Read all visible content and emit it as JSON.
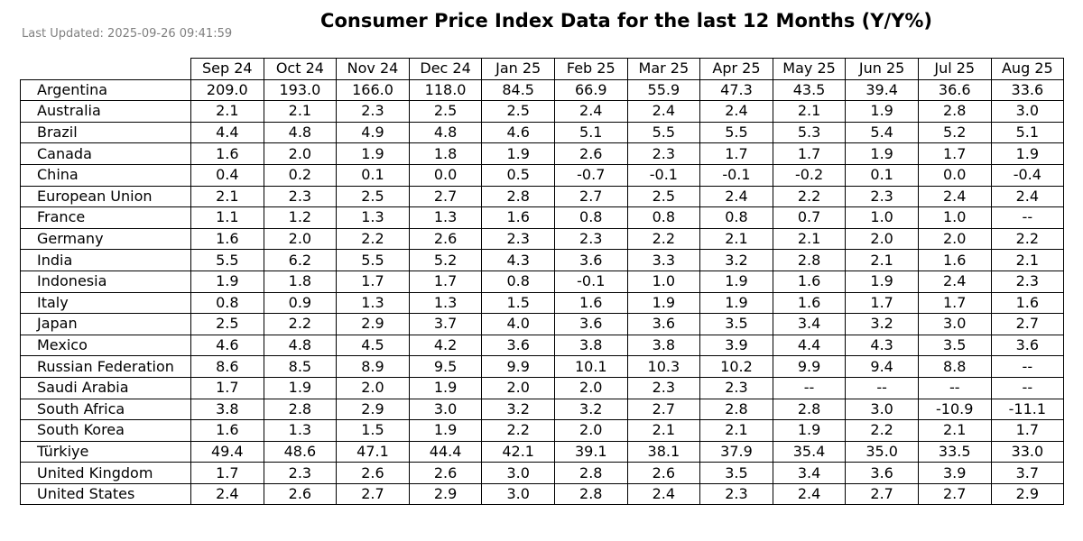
{
  "page": {
    "last_updated": "Last Updated: 2025-09-26 09:41:59"
  },
  "chart_data": {
    "type": "table",
    "title": "Consumer Price Index Data for the last 12 Months (Y/Y%)",
    "columns": [
      "Sep 24",
      "Oct 24",
      "Nov 24",
      "Dec 24",
      "Jan 25",
      "Feb 25",
      "Mar 25",
      "Apr 25",
      "May 25",
      "Jun 25",
      "Jul 25",
      "Aug 25"
    ],
    "rows": [
      {
        "label": "Argentina",
        "values": [
          "209.0",
          "193.0",
          "166.0",
          "118.0",
          "84.5",
          "66.9",
          "55.9",
          "47.3",
          "43.5",
          "39.4",
          "36.6",
          "33.6"
        ]
      },
      {
        "label": "Australia",
        "values": [
          "2.1",
          "2.1",
          "2.3",
          "2.5",
          "2.5",
          "2.4",
          "2.4",
          "2.4",
          "2.1",
          "1.9",
          "2.8",
          "3.0"
        ]
      },
      {
        "label": "Brazil",
        "values": [
          "4.4",
          "4.8",
          "4.9",
          "4.8",
          "4.6",
          "5.1",
          "5.5",
          "5.5",
          "5.3",
          "5.4",
          "5.2",
          "5.1"
        ]
      },
      {
        "label": "Canada",
        "values": [
          "1.6",
          "2.0",
          "1.9",
          "1.8",
          "1.9",
          "2.6",
          "2.3",
          "1.7",
          "1.7",
          "1.9",
          "1.7",
          "1.9"
        ]
      },
      {
        "label": "China",
        "values": [
          "0.4",
          "0.2",
          "0.1",
          "0.0",
          "0.5",
          "-0.7",
          "-0.1",
          "-0.1",
          "-0.2",
          "0.1",
          "0.0",
          "-0.4"
        ]
      },
      {
        "label": "European Union",
        "values": [
          "2.1",
          "2.3",
          "2.5",
          "2.7",
          "2.8",
          "2.7",
          "2.5",
          "2.4",
          "2.2",
          "2.3",
          "2.4",
          "2.4"
        ]
      },
      {
        "label": "France",
        "values": [
          "1.1",
          "1.2",
          "1.3",
          "1.3",
          "1.6",
          "0.8",
          "0.8",
          "0.8",
          "0.7",
          "1.0",
          "1.0",
          "--"
        ]
      },
      {
        "label": "Germany",
        "values": [
          "1.6",
          "2.0",
          "2.2",
          "2.6",
          "2.3",
          "2.3",
          "2.2",
          "2.1",
          "2.1",
          "2.0",
          "2.0",
          "2.2"
        ]
      },
      {
        "label": "India",
        "values": [
          "5.5",
          "6.2",
          "5.5",
          "5.2",
          "4.3",
          "3.6",
          "3.3",
          "3.2",
          "2.8",
          "2.1",
          "1.6",
          "2.1"
        ]
      },
      {
        "label": "Indonesia",
        "values": [
          "1.9",
          "1.8",
          "1.7",
          "1.7",
          "0.8",
          "-0.1",
          "1.0",
          "1.9",
          "1.6",
          "1.9",
          "2.4",
          "2.3"
        ]
      },
      {
        "label": "Italy",
        "values": [
          "0.8",
          "0.9",
          "1.3",
          "1.3",
          "1.5",
          "1.6",
          "1.9",
          "1.9",
          "1.6",
          "1.7",
          "1.7",
          "1.6"
        ]
      },
      {
        "label": "Japan",
        "values": [
          "2.5",
          "2.2",
          "2.9",
          "3.7",
          "4.0",
          "3.6",
          "3.6",
          "3.5",
          "3.4",
          "3.2",
          "3.0",
          "2.7"
        ]
      },
      {
        "label": "Mexico",
        "values": [
          "4.6",
          "4.8",
          "4.5",
          "4.2",
          "3.6",
          "3.8",
          "3.8",
          "3.9",
          "4.4",
          "4.3",
          "3.5",
          "3.6"
        ]
      },
      {
        "label": "Russian Federation",
        "values": [
          "8.6",
          "8.5",
          "8.9",
          "9.5",
          "9.9",
          "10.1",
          "10.3",
          "10.2",
          "9.9",
          "9.4",
          "8.8",
          "--"
        ]
      },
      {
        "label": "Saudi Arabia",
        "values": [
          "1.7",
          "1.9",
          "2.0",
          "1.9",
          "2.0",
          "2.0",
          "2.3",
          "2.3",
          "--",
          "--",
          "--",
          "--"
        ]
      },
      {
        "label": "South Africa",
        "values": [
          "3.8",
          "2.8",
          "2.9",
          "3.0",
          "3.2",
          "3.2",
          "2.7",
          "2.8",
          "2.8",
          "3.0",
          "-10.9",
          "-11.1"
        ]
      },
      {
        "label": "South Korea",
        "values": [
          "1.6",
          "1.3",
          "1.5",
          "1.9",
          "2.2",
          "2.0",
          "2.1",
          "2.1",
          "1.9",
          "2.2",
          "2.1",
          "1.7"
        ]
      },
      {
        "label": "Türkiye",
        "values": [
          "49.4",
          "48.6",
          "47.1",
          "44.4",
          "42.1",
          "39.1",
          "38.1",
          "37.9",
          "35.4",
          "35.0",
          "33.5",
          "33.0"
        ]
      },
      {
        "label": "United Kingdom",
        "values": [
          "1.7",
          "2.3",
          "2.6",
          "2.6",
          "3.0",
          "2.8",
          "2.6",
          "3.5",
          "3.4",
          "3.6",
          "3.9",
          "3.7"
        ]
      },
      {
        "label": "United States",
        "values": [
          "2.4",
          "2.6",
          "2.7",
          "2.9",
          "3.0",
          "2.8",
          "2.4",
          "2.3",
          "2.4",
          "2.7",
          "2.7",
          "2.9"
        ]
      }
    ]
  }
}
